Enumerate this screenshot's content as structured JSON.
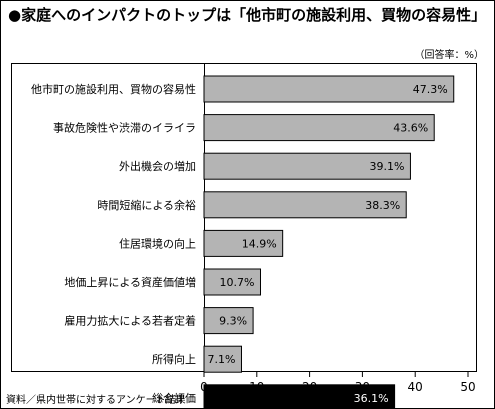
{
  "title": "●家庭へのインパクトのトップは「他市町の施設利用、買物の容易性」",
  "unit_note": "（回答率：%）",
  "source": "資料／県内世帯に対するアンケート結果",
  "chart_data": {
    "type": "bar",
    "orientation": "horizontal",
    "categories": [
      "他市町の施設利用、買物の容易性",
      "事故危険性や渋滞のイライラ",
      "外出機会の増加",
      "時間短縮による余裕",
      "住居環境の向上",
      "地価上昇による資産価値増",
      "雇用力拡大による若者定着",
      "所得向上",
      "総合評価"
    ],
    "values": [
      47.3,
      43.6,
      39.1,
      38.3,
      14.9,
      10.7,
      9.3,
      7.1,
      36.1
    ],
    "value_labels": [
      "47.3%",
      "43.6%",
      "39.1%",
      "38.3%",
      "14.9%",
      "10.7%",
      "9.3%",
      "7.1%",
      "36.1%"
    ],
    "highlight_index": 8,
    "colors": {
      "bar": "#b4b4b4",
      "highlight": "#000000",
      "frame": "#000000"
    },
    "xlim": [
      0,
      50
    ],
    "xticks": [
      0,
      10,
      20,
      30,
      40,
      50
    ],
    "grid": false
  }
}
